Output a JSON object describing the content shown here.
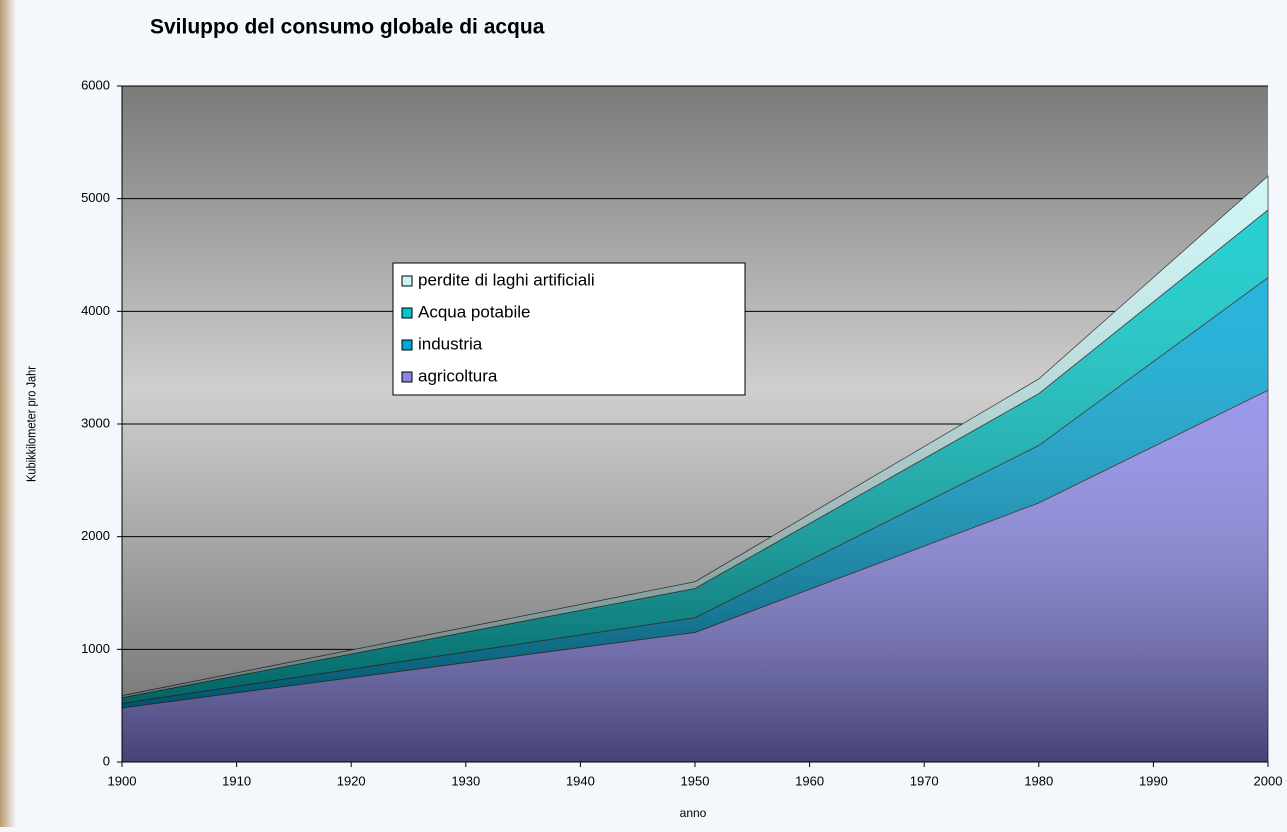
{
  "chart_data": {
    "type": "stacked-area",
    "title": "Sviluppo del consumo globale di acqua",
    "x_label": "anno",
    "y_label": "Kubikkilometer pro Jahr",
    "x": [
      1900,
      1950,
      1980,
      2000
    ],
    "series": [
      {
        "name": "agricoltura",
        "color": "#8a86e8",
        "values": [
          480,
          1150,
          2300,
          3300
        ]
      },
      {
        "name": "industria",
        "color": "#00a8d8",
        "values": [
          40,
          130,
          510,
          1000
        ]
      },
      {
        "name": "Acqua potabile",
        "color": "#00c8c8",
        "values": [
          50,
          260,
          460,
          600
        ]
      },
      {
        "name": "perdite di laghi artificiali",
        "color": "#c8f4f4",
        "values": [
          20,
          60,
          130,
          300
        ]
      }
    ],
    "xlim": [
      1900,
      2000
    ],
    "xticks": [
      1900,
      1910,
      1920,
      1930,
      1940,
      1950,
      1960,
      1970,
      1980,
      1990,
      2000
    ],
    "ylim": [
      0,
      6000
    ],
    "yticks": [
      0,
      1000,
      2000,
      3000,
      4000,
      5000,
      6000
    ],
    "grid": true
  }
}
